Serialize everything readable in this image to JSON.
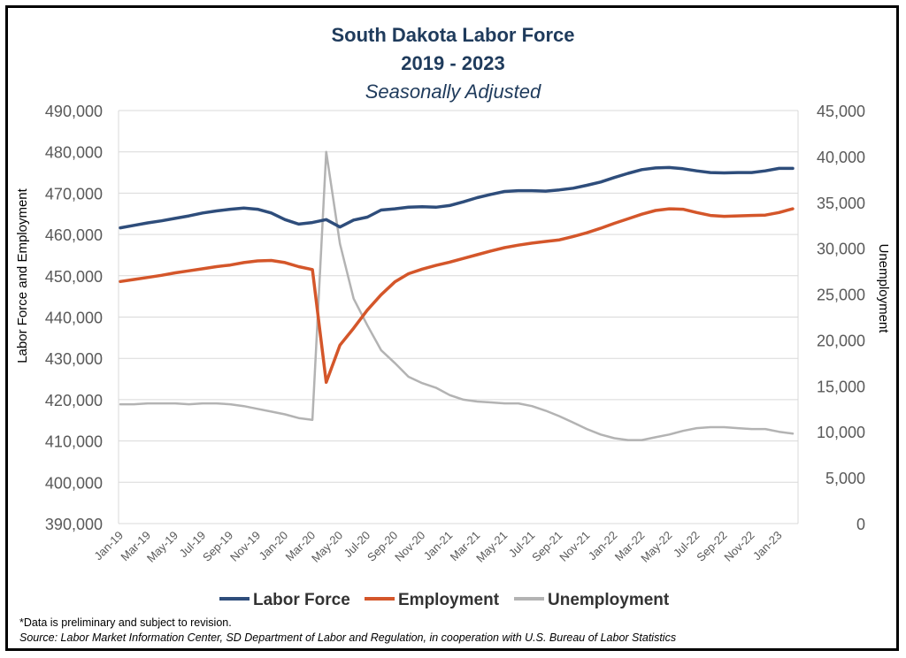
{
  "chart_data": {
    "type": "line",
    "title": "South Dakota Labor Force",
    "subtitle_years": "2019 - 2023",
    "subtitle": "Seasonally Adjusted",
    "ylabel_left": "Labor  Force and Employment",
    "ylabel_right": "Unemployment",
    "ylim_left": [
      390000,
      490000
    ],
    "ylim_right": [
      0,
      45000
    ],
    "yticks_left": [
      "390,000",
      "400,000",
      "410,000",
      "420,000",
      "430,000",
      "440,000",
      "450,000",
      "460,000",
      "470,000",
      "480,000",
      "490,000"
    ],
    "yticks_right": [
      "0",
      "5,000",
      "10,000",
      "15,000",
      "20,000",
      "25,000",
      "30,000",
      "35,000",
      "40,000",
      "45,000"
    ],
    "xtick_labels": [
      "Jan-19",
      "Mar-19",
      "May-19",
      "Jul-19",
      "Sep-19",
      "Nov-19",
      "Jan-20",
      "Mar-20",
      "May-20",
      "Jul-20",
      "Sep-20",
      "Nov-20",
      "Jan-21",
      "Mar-21",
      "May-21",
      "Jul-21",
      "Sep-21",
      "Nov-21",
      "Jan-22",
      "Mar-22",
      "May-22",
      "Jul-22",
      "Sep-22",
      "Nov-22",
      "Jan-23"
    ],
    "x": [
      "Jan-19",
      "Feb-19",
      "Mar-19",
      "Apr-19",
      "May-19",
      "Jun-19",
      "Jul-19",
      "Aug-19",
      "Sep-19",
      "Oct-19",
      "Nov-19",
      "Dec-19",
      "Jan-20",
      "Feb-20",
      "Mar-20",
      "Apr-20",
      "May-20",
      "Jun-20",
      "Jul-20",
      "Aug-20",
      "Sep-20",
      "Oct-20",
      "Nov-20",
      "Dec-20",
      "Jan-21",
      "Feb-21",
      "Mar-21",
      "Apr-21",
      "May-21",
      "Jun-21",
      "Jul-21",
      "Aug-21",
      "Sep-21",
      "Oct-21",
      "Nov-21",
      "Dec-21",
      "Jan-22",
      "Feb-22",
      "Mar-22",
      "Apr-22",
      "May-22",
      "Jun-22",
      "Jul-22",
      "Aug-22",
      "Sep-22",
      "Oct-22",
      "Nov-22",
      "Dec-22",
      "Jan-23",
      "Feb-23"
    ],
    "series": [
      {
        "name": "Labor Force",
        "axis": "left",
        "color": "#2e4d7b",
        "values": [
          461600,
          462200,
          462800,
          463300,
          463900,
          464500,
          465200,
          465700,
          466100,
          466400,
          466100,
          465200,
          463600,
          462500,
          462900,
          463600,
          461800,
          463500,
          464200,
          465900,
          466200,
          466600,
          466700,
          466600,
          467000,
          467900,
          468900,
          469700,
          470400,
          470600,
          470600,
          470500,
          470800,
          471200,
          471900,
          472700,
          473800,
          474800,
          475700,
          476100,
          476200,
          475900,
          475400,
          475000,
          474900,
          475000,
          475000,
          475400,
          476000,
          476000
        ]
      },
      {
        "name": "Employment",
        "axis": "left",
        "color": "#d4562a",
        "values": [
          448600,
          449100,
          449600,
          450100,
          450700,
          451200,
          451700,
          452200,
          452600,
          453200,
          453600,
          453700,
          453200,
          452200,
          451500,
          424200,
          433200,
          437300,
          441700,
          445400,
          448500,
          450500,
          451600,
          452500,
          453300,
          454200,
          455100,
          456000,
          456800,
          457400,
          457900,
          458300,
          458700,
          459500,
          460400,
          461500,
          462700,
          463800,
          464900,
          465800,
          466200,
          466100,
          465300,
          464600,
          464400,
          464500,
          464600,
          464700,
          465300,
          466200
        ]
      },
      {
        "name": "Unemployment",
        "axis": "right",
        "color": "#b3b3b3",
        "values": [
          13000,
          13000,
          13100,
          13100,
          13100,
          13000,
          13100,
          13100,
          13000,
          12800,
          12500,
          12200,
          11900,
          11500,
          11300,
          40500,
          30500,
          24500,
          21600,
          18900,
          17500,
          16000,
          15300,
          14800,
          14000,
          13500,
          13300,
          13200,
          13100,
          13100,
          12800,
          12300,
          11700,
          11000,
          10300,
          9700,
          9300,
          9100,
          9100,
          9400,
          9700,
          10100,
          10400,
          10500,
          10500,
          10400,
          10300,
          10300,
          10000,
          9800
        ]
      }
    ],
    "grid": true,
    "legend_position": "bottom"
  },
  "notes": {
    "preliminary": "*Data is preliminary and subject to revision.",
    "source": "Source: Labor Market Information Center, SD Department of Labor and Regulation, in cooperation with U.S. Bureau of Labor Statistics"
  }
}
